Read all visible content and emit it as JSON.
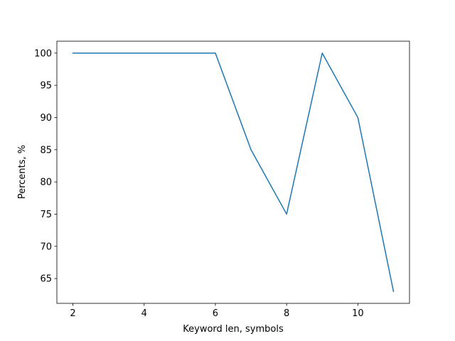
{
  "chart_data": {
    "type": "line",
    "title": "",
    "xlabel": "Keyword len, symbols",
    "ylabel": "Percents, %",
    "xlim": [
      1.55,
      11.45
    ],
    "ylim": [
      61.15,
      101.85
    ],
    "xticks": [
      2,
      4,
      6,
      8,
      10
    ],
    "yticks": [
      65,
      70,
      75,
      80,
      85,
      90,
      95,
      100
    ],
    "grid": false,
    "series": [
      {
        "color": "#1f77b4",
        "x": [
          2,
          3,
          4,
          5,
          6,
          7,
          8,
          9,
          10,
          11
        ],
        "y": [
          100,
          100,
          100,
          100,
          100,
          85,
          75,
          100,
          90,
          63
        ]
      }
    ]
  }
}
